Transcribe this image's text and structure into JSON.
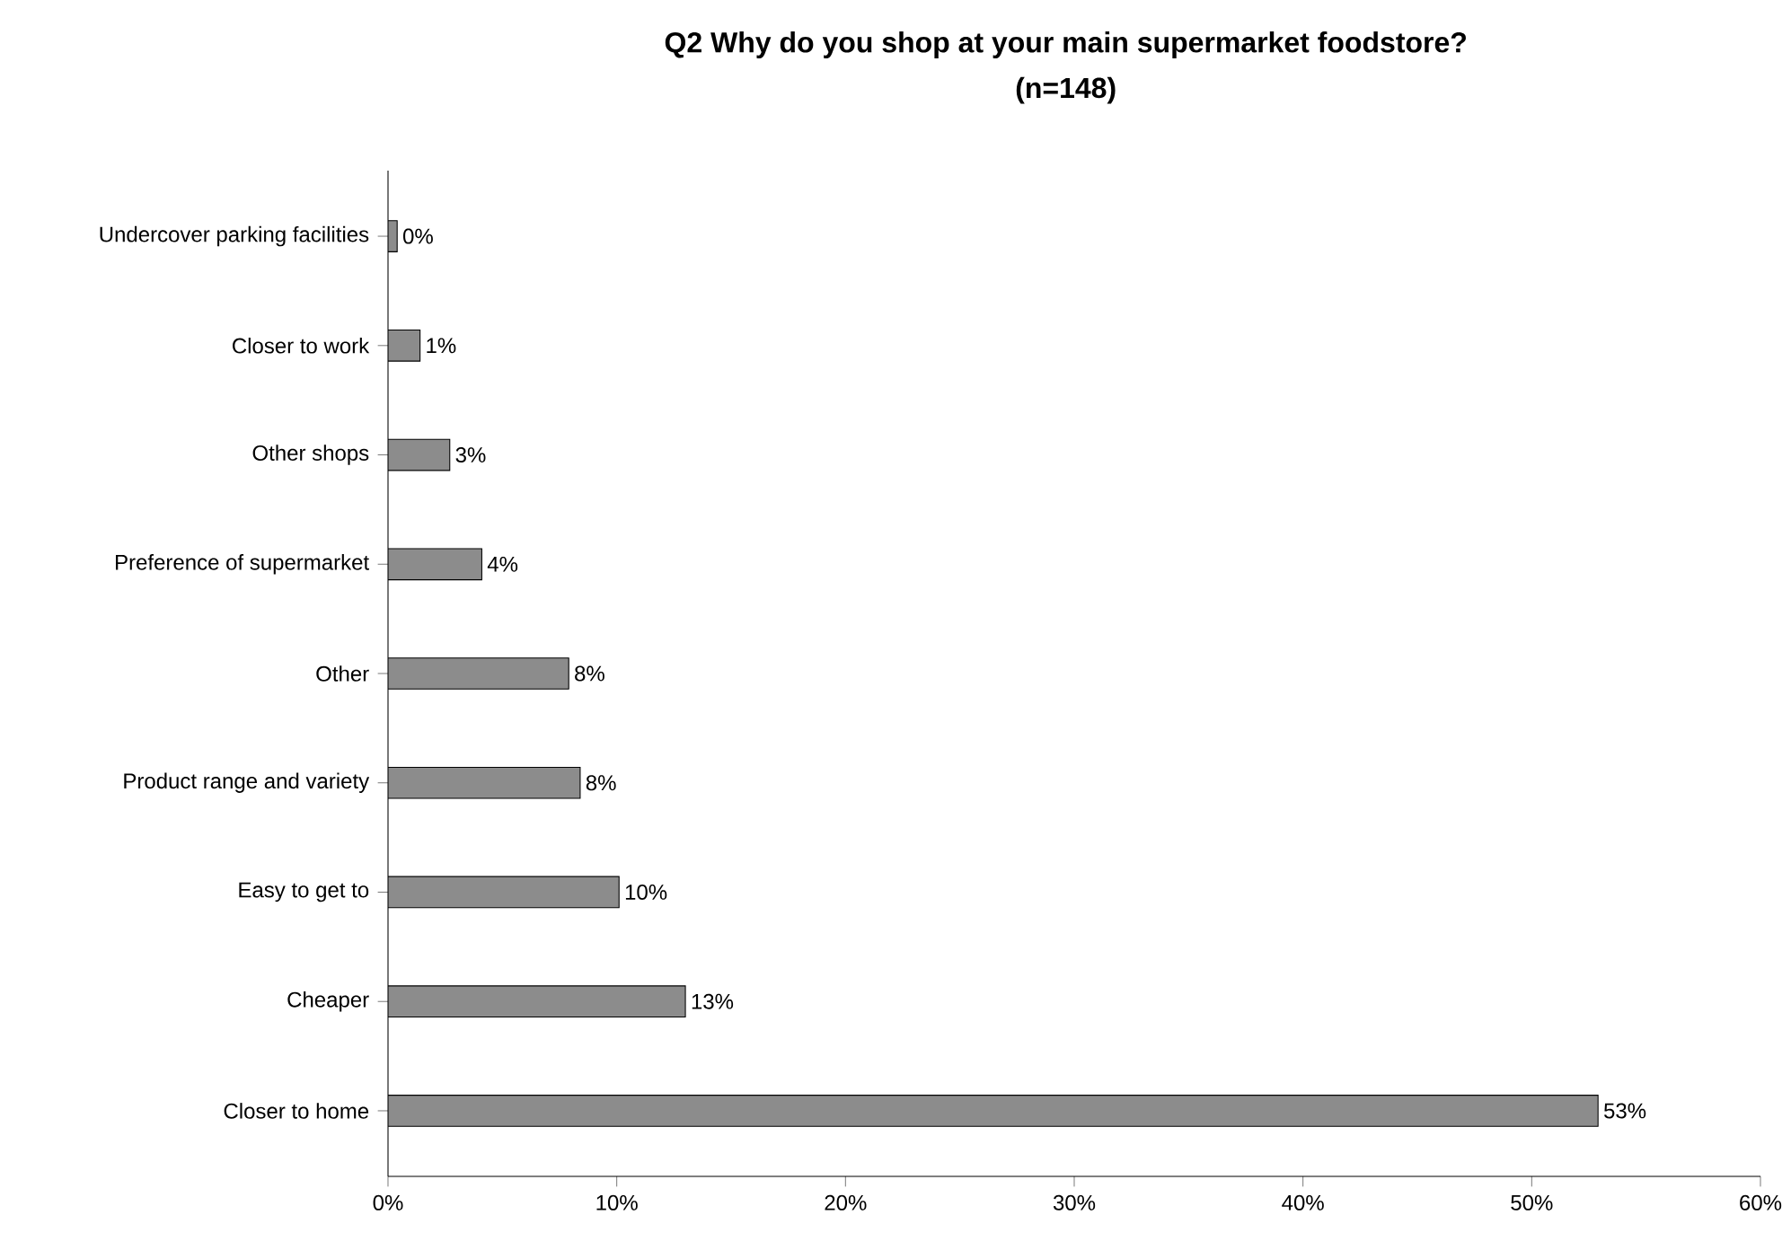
{
  "chart_data": {
    "type": "bar",
    "orientation": "horizontal",
    "title": "Q2 Why do you shop at your main supermarket foodstore?",
    "subtitle": "(n=148)",
    "categories": [
      "Undercover parking facilities",
      "Closer to work",
      "Other shops",
      "Preference of supermarket",
      "Other",
      "Product range and variety",
      "Easy to get to",
      "Cheaper",
      "Closer to home"
    ],
    "values": [
      0.4,
      1.4,
      2.7,
      4.1,
      7.9,
      8.4,
      10.1,
      13.0,
      52.9
    ],
    "value_labels": [
      "0%",
      "1%",
      "3%",
      "4%",
      "8%",
      "8%",
      "10%",
      "13%",
      "53%"
    ],
    "color": "#8c8c8c",
    "xlim": [
      0,
      60
    ],
    "xticks": [
      {
        "value": 0,
        "label": "0%"
      },
      {
        "value": 10,
        "label": "10%"
      },
      {
        "value": 20,
        "label": "20%"
      },
      {
        "value": 30,
        "label": "30%"
      },
      {
        "value": 40,
        "label": "40%"
      },
      {
        "value": 50,
        "label": "50%"
      },
      {
        "value": 60,
        "label": "60%"
      }
    ]
  }
}
